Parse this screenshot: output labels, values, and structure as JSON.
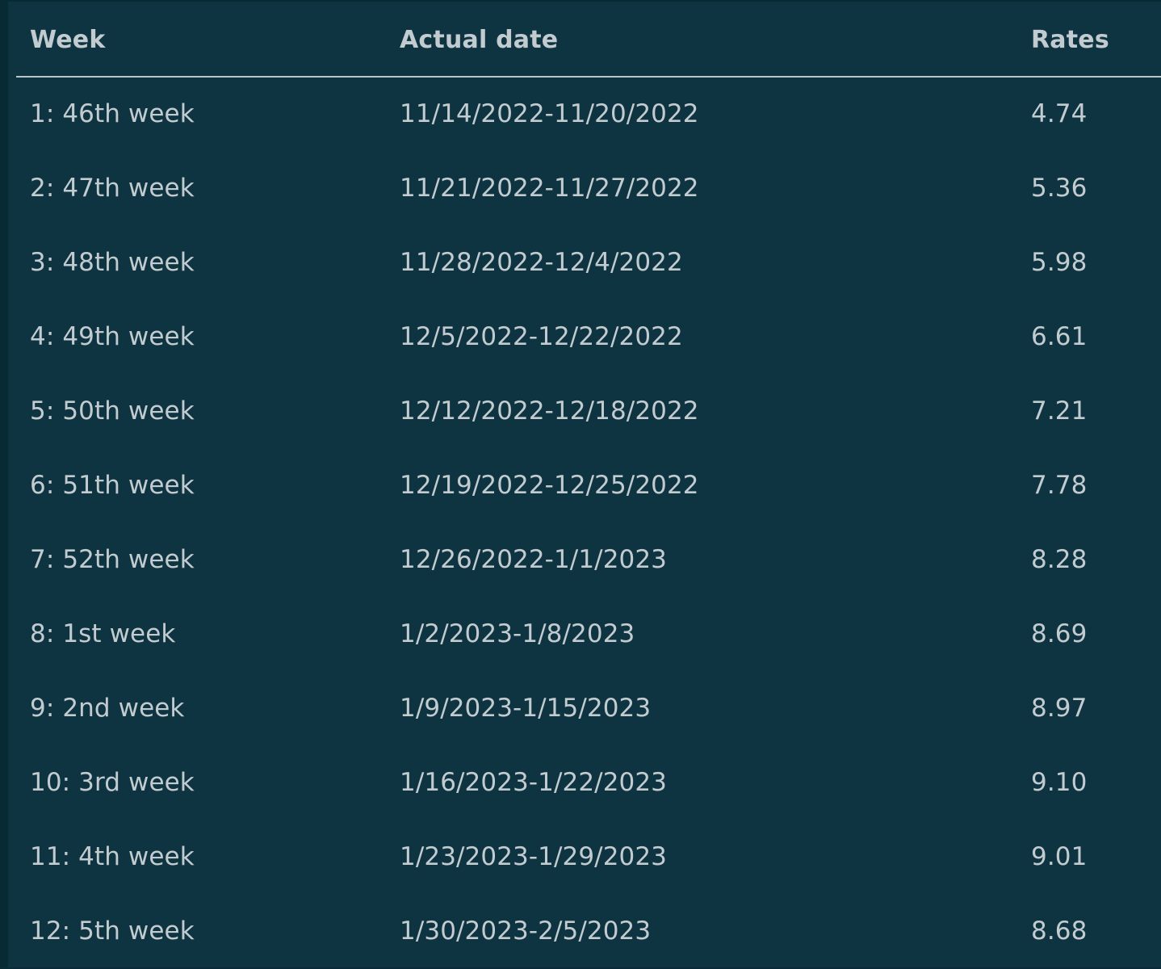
{
  "table": {
    "headers": [
      "Week",
      "Actual date",
      "Rates"
    ],
    "rows": [
      [
        "1: 46th week",
        "11/14/2022-11/20/2022",
        "4.74"
      ],
      [
        "2: 47th week",
        "11/21/2022-11/27/2022",
        "5.36"
      ],
      [
        "3: 48th week",
        "11/28/2022-12/4/2022",
        "5.98"
      ],
      [
        "4: 49th week",
        "12/5/2022-12/22/2022",
        "6.61"
      ],
      [
        "5: 50th week",
        "12/12/2022-12/18/2022",
        "7.21"
      ],
      [
        "6: 51th week",
        "12/19/2022-12/25/2022",
        "7.78"
      ],
      [
        "7: 52th week",
        "12/26/2022-1/1/2023",
        "8.28"
      ],
      [
        "8: 1st week",
        "1/2/2023-1/8/2023",
        "8.69"
      ],
      [
        "9: 2nd week",
        "1/9/2023-1/15/2023",
        "8.97"
      ],
      [
        "10: 3rd week",
        "1/16/2023-1/22/2023",
        "9.10"
      ],
      [
        "11: 4th week",
        "1/23/2023-1/29/2023",
        "9.01"
      ],
      [
        "12: 5th week",
        "1/30/2023-2/5/2023",
        "8.68"
      ]
    ]
  },
  "colors": {
    "background": "#0f3441",
    "text": "#c2ccd0",
    "header_rule": "#b9c7cc"
  }
}
